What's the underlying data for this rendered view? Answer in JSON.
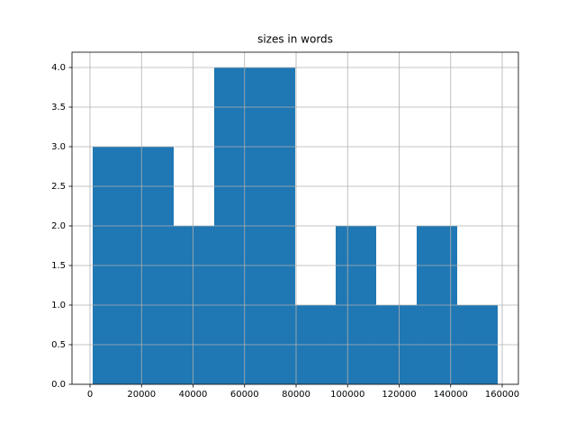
{
  "chart_data": {
    "type": "histogram",
    "title": "sizes in words",
    "bins": [
      1048,
      16768,
      32488,
      48208,
      63928,
      79648,
      95368,
      111088,
      126808,
      142528,
      158248
    ],
    "values": [
      3,
      3,
      2,
      4,
      4,
      1,
      2,
      1,
      2,
      1
    ],
    "color": "#1f77b4",
    "xlim": [
      -6987,
      166288
    ],
    "xticks": [
      0,
      20000,
      40000,
      60000,
      80000,
      100000,
      120000,
      140000,
      160000
    ],
    "ylim": [
      0,
      4.193
    ],
    "yticks": [
      {
        "value": 0,
        "label": "0.0"
      },
      {
        "value": 0.5,
        "label": "0.5"
      },
      {
        "value": 1,
        "label": "1.0"
      },
      {
        "value": 1.5,
        "label": "1.5"
      },
      {
        "value": 2,
        "label": "2.0"
      },
      {
        "value": 2.5,
        "label": "2.5"
      },
      {
        "value": 3,
        "label": "3.0"
      },
      {
        "value": 3.5,
        "label": "3.5"
      },
      {
        "value": 4,
        "label": "4.0"
      }
    ],
    "grid": true
  }
}
